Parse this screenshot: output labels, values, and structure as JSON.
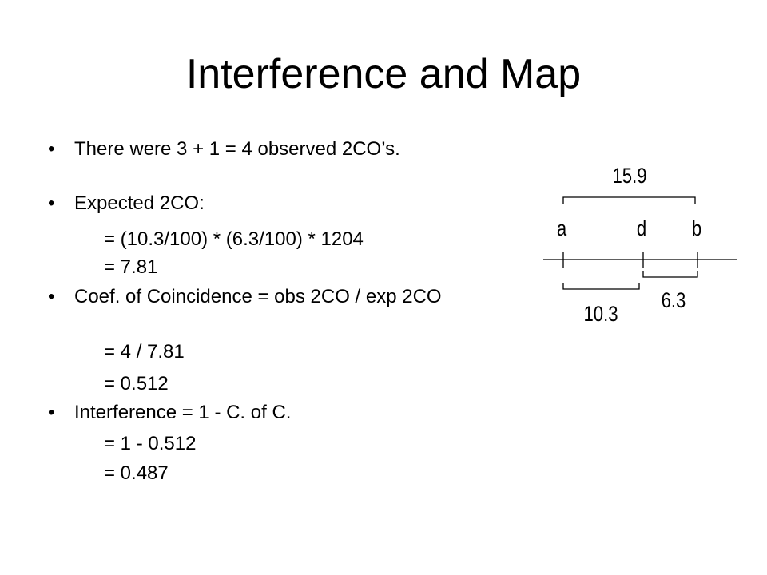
{
  "title": "Interference and Map",
  "bullets": [
    {
      "text": "There were 3 + 1 = 4 observed 2CO’s.",
      "sub": []
    },
    {
      "text": "Expected 2CO:",
      "sub": [
        "= (10.3/100) * (6.3/100) * 1204",
        "= 7.81"
      ]
    },
    {
      "text": "Coef. of Coincidence = obs 2CO / exp 2CO",
      "sub": [
        "= 4 / 7.81",
        "= 0.512"
      ]
    },
    {
      "text": "Interference = 1 - C. of C.",
      "sub": [
        "= 1 - 0.512",
        "= 0.487"
      ]
    }
  ],
  "map": {
    "total": "15.9",
    "loci": [
      "a",
      "d",
      "b"
    ],
    "left": "10.3",
    "right": "6.3"
  }
}
